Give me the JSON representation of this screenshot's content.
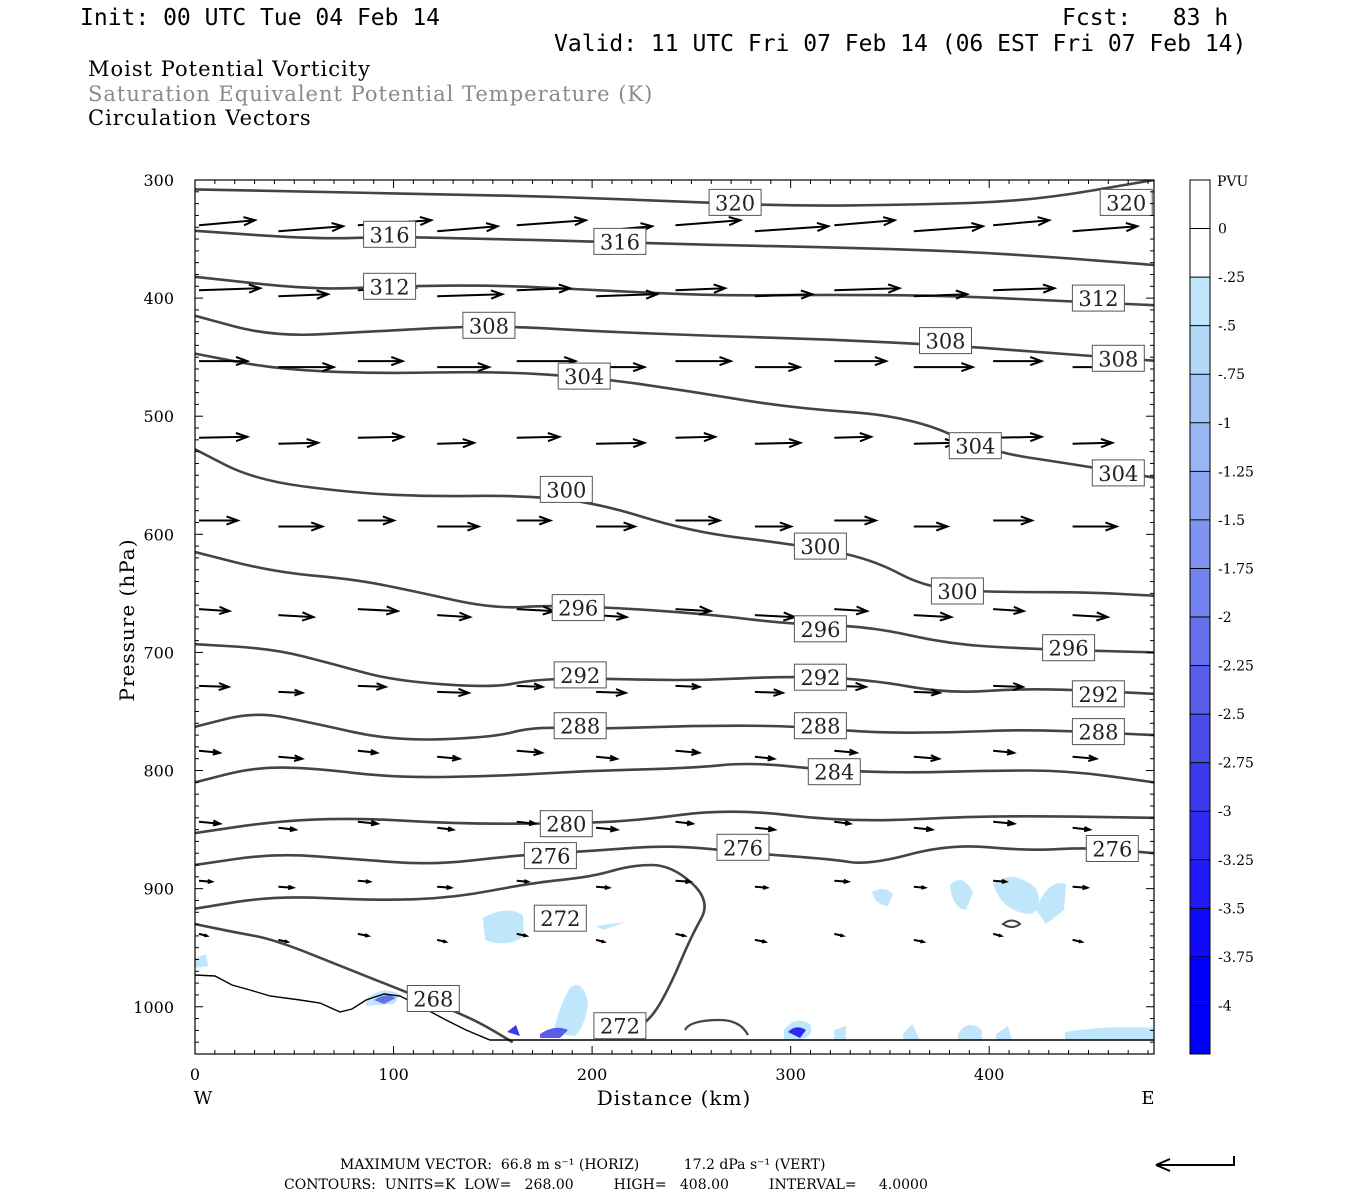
{
  "header": {
    "init": "Init: 00 UTC Tue 04 Feb 14",
    "fcst": "Fcst:   83 h",
    "valid": "Valid: 11 UTC Fri 07 Feb 14 (06 EST Fri 07 Feb 14)",
    "field1": "Moist Potential Vorticity",
    "field2": "Saturation Equivalent Potential Temperature (K)",
    "field3": "Circulation Vectors"
  },
  "colors": {
    "field2_text": "#8a8a8a",
    "contour": "#444444",
    "vector": "#000000",
    "pv_scale": [
      "#ffffff",
      "#ffffff",
      "#bfe6fb",
      "#b0d8f8",
      "#a4c6f6",
      "#98b6f4",
      "#8ca4f2",
      "#8092f0",
      "#7282ee",
      "#6570ec",
      "#585eea",
      "#4a4ce8",
      "#3c3aef",
      "#2e2af3",
      "#1f1af7",
      "#0f0afb",
      "#0000ff"
    ]
  },
  "footer": {
    "max_vector": "MAXIMUM VECTOR:  66.8 m s⁻¹ (HORIZ)          17.2 dPa s⁻¹ (VERT)",
    "contours": "CONTOURS:  UNITS=K  LOW=   268.00         HIGH=   408.00         INTERVAL=     4.0000"
  },
  "chart_data": {
    "type": "cross-section",
    "xlabel": "Distance (km)",
    "ylabel": "Pressure (hPa)",
    "xlim": [
      0,
      483
    ],
    "ylim": [
      1040,
      300
    ],
    "xticks": [
      0,
      100,
      200,
      300,
      400
    ],
    "yticks": [
      300,
      400,
      500,
      600,
      700,
      800,
      900,
      1000
    ],
    "west_label": "W",
    "east_label": "E",
    "colorbar": {
      "unit": "PVU",
      "labels": [
        "0",
        "-.25",
        "-.5",
        "-.75",
        "-1",
        "-1.25",
        "-1.5",
        "-1.75",
        "-2",
        "-2.25",
        "-2.5",
        "-2.75",
        "-3",
        "-3.25",
        "-3.5",
        "-3.75",
        "-4"
      ]
    },
    "contours": [
      {
        "value": "320",
        "x": [
          0,
          60,
          120,
          180,
          240,
          300,
          360,
          420,
          483
        ],
        "p": [
          308,
          310,
          312,
          314,
          318,
          322,
          321,
          318,
          300
        ]
      },
      {
        "value": "316",
        "x": [
          0,
          60,
          100,
          150,
          200,
          260,
          320,
          380,
          430,
          483
        ],
        "p": [
          343,
          350,
          348,
          350,
          352,
          355,
          357,
          360,
          365,
          372
        ]
      },
      {
        "value": "312",
        "x": [
          0,
          60,
          100,
          150,
          200,
          260,
          320,
          380,
          430,
          483
        ],
        "p": [
          382,
          393,
          390,
          389,
          393,
          398,
          397,
          398,
          402,
          406
        ]
      },
      {
        "value": "308",
        "x": [
          0,
          40,
          90,
          150,
          200,
          260,
          320,
          380,
          420,
          483
        ],
        "p": [
          415,
          433,
          428,
          423,
          428,
          432,
          435,
          440,
          445,
          453
        ]
      },
      {
        "value": "304",
        "x": [
          0,
          40,
          90,
          150,
          200,
          250,
          300,
          360,
          400,
          440,
          483
        ],
        "p": [
          447,
          460,
          464,
          462,
          467,
          479,
          493,
          500,
          530,
          540,
          552
        ]
      },
      {
        "value": "300",
        "x": [
          0,
          30,
          80,
          120,
          160,
          200,
          250,
          300,
          340,
          370,
          410,
          450,
          483
        ],
        "p": [
          528,
          554,
          565,
          568,
          567,
          572,
          598,
          608,
          620,
          647,
          649,
          649,
          652
        ]
      },
      {
        "value": "296",
        "x": [
          0,
          40,
          80,
          110,
          150,
          180,
          220,
          260,
          300,
          340,
          380,
          420,
          483
        ],
        "p": [
          615,
          632,
          638,
          648,
          663,
          660,
          663,
          668,
          676,
          678,
          693,
          697,
          700
        ]
      },
      {
        "value": "292",
        "x": [
          0,
          40,
          70,
          100,
          150,
          170,
          200,
          250,
          300,
          340,
          380,
          420,
          483
        ],
        "p": [
          693,
          697,
          710,
          724,
          730,
          723,
          722,
          724,
          720,
          723,
          735,
          730,
          735
        ]
      },
      {
        "value": "288",
        "x": [
          0,
          30,
          60,
          100,
          150,
          170,
          200,
          250,
          300,
          340,
          380,
          420,
          483
        ],
        "p": [
          763,
          750,
          760,
          775,
          772,
          763,
          765,
          762,
          762,
          768,
          768,
          765,
          770
        ]
      },
      {
        "value": "284",
        "x": [
          0,
          30,
          60,
          100,
          150,
          200,
          250,
          280,
          320,
          360,
          400,
          440,
          483
        ],
        "p": [
          810,
          797,
          798,
          806,
          805,
          800,
          798,
          793,
          800,
          802,
          800,
          800,
          810
        ]
      },
      {
        "value": "280",
        "x": [
          0,
          40,
          80,
          130,
          180,
          220,
          270,
          330,
          400,
          483
        ],
        "p": [
          853,
          843,
          840,
          845,
          845,
          843,
          832,
          844,
          838,
          840
        ]
      },
      {
        "value": "276",
        "x": [
          0,
          40,
          80,
          120,
          160,
          200,
          240,
          280,
          320,
          340,
          380,
          420,
          450,
          483
        ],
        "p": [
          880,
          870,
          875,
          880,
          872,
          868,
          863,
          870,
          875,
          880,
          862,
          868,
          865,
          870
        ]
      },
      {
        "value": "272",
        "x": [
          0,
          40,
          90,
          130,
          170,
          200,
          220,
          240,
          260,
          250,
          240,
          230,
          220
        ],
        "p": [
          917,
          906,
          910,
          908,
          895,
          890,
          880,
          880,
          910,
          940,
          980,
          1010,
          1020
        ]
      },
      {
        "value": "268",
        "x": [
          0,
          20,
          40,
          80,
          110,
          140,
          160
        ],
        "p": [
          930,
          937,
          943,
          970,
          990,
          1010,
          1030
        ]
      }
    ]
  }
}
